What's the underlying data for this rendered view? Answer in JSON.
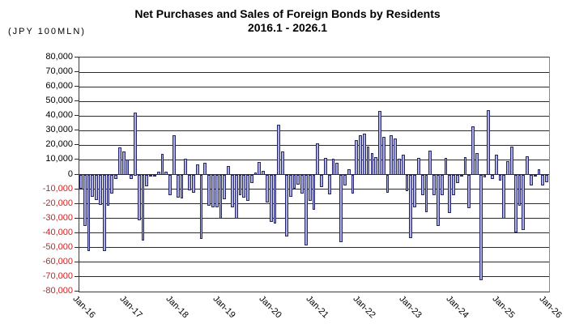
{
  "title": {
    "line1": "Net Purchases and Sales of Foreign Bonds by Residents",
    "line2": "2016.1 - 2026.1"
  },
  "unit_label": "(JPY 100MLN)",
  "colors": {
    "bar_fill": "#abaddf",
    "bar_border": "#26266b",
    "positive_tick_label": "#000000",
    "negative_tick_label": "#cc2222",
    "gridline": "#2b2b2b"
  },
  "chart_data": {
    "type": "bar",
    "title": "Net Purchases and Sales of Foreign Bonds by Residents",
    "subtitle": "2016.1 - 2026.1",
    "ylabel": "(JPY 100MLN)",
    "xlabel": "",
    "ylim": [
      -80000,
      80000
    ],
    "y_tick_step": 10000,
    "grid": true,
    "legend": "none",
    "x_start": "2016-01",
    "x_frequency": "monthly",
    "x_tick_labels": [
      "Jan-16",
      "Jan-17",
      "Jan-18",
      "Jan-19",
      "Jan-20",
      "Jan-21",
      "Jan-22",
      "Jan-23",
      "Jan-24",
      "Jan-25",
      "Jan-26"
    ],
    "y_tick_labels": [
      "80,000",
      "70,000",
      "60,000",
      "50,000",
      "40,000",
      "30,000",
      "20,000",
      "10,000",
      "0",
      "-10,000",
      "-20,000",
      "-30,000",
      "-40,000",
      "-50,000",
      "-60,000",
      "-70,000",
      "-80,000"
    ],
    "y_tick_values": [
      80000,
      70000,
      60000,
      50000,
      40000,
      30000,
      20000,
      10000,
      0,
      -10000,
      -20000,
      -30000,
      -40000,
      -50000,
      -60000,
      -70000,
      -80000
    ],
    "values": [
      -9000,
      -34400,
      -51500,
      -14500,
      -17000,
      -20000,
      -52000,
      -20700,
      -12600,
      -2700,
      18500,
      15900,
      10500,
      -2700,
      42500,
      -30700,
      -44300,
      -7200,
      -1000,
      -500,
      1800,
      14000,
      1800,
      -13600,
      27100,
      -15500,
      -15700,
      10800,
      -10300,
      -12000,
      6700,
      -43500,
      7800,
      -20500,
      -21700,
      -21700,
      -29800,
      -16300,
      6000,
      -21700,
      -29800,
      -13600,
      -15000,
      -17200,
      -5400,
      1500,
      8700,
      2400,
      -18400,
      -31600,
      -33000,
      33800,
      15700,
      -41600,
      -14500,
      -9000,
      -6300,
      -12600,
      -48000,
      -17200,
      -23400,
      21500,
      -8000,
      11200,
      -13200,
      10800,
      8100,
      -45700,
      -6800,
      3600,
      -12600,
      23500,
      26600,
      27700,
      19300,
      14500,
      12100,
      43400,
      25800,
      -11800,
      27000,
      24800,
      10800,
      13600,
      -10800,
      -43000,
      -21700,
      11400,
      -13600,
      -25300,
      16300,
      -13600,
      -34400,
      -13600,
      11400,
      -25900,
      -13600,
      -5400,
      -1000,
      11700,
      -22600,
      32900,
      14500,
      -71500,
      -1500,
      43900,
      -2500,
      13600,
      -3600,
      -29500,
      8900,
      19300,
      -39000,
      -20800,
      -37100,
      12300,
      -6700,
      -1000,
      3600,
      -6700,
      -4500
    ]
  }
}
